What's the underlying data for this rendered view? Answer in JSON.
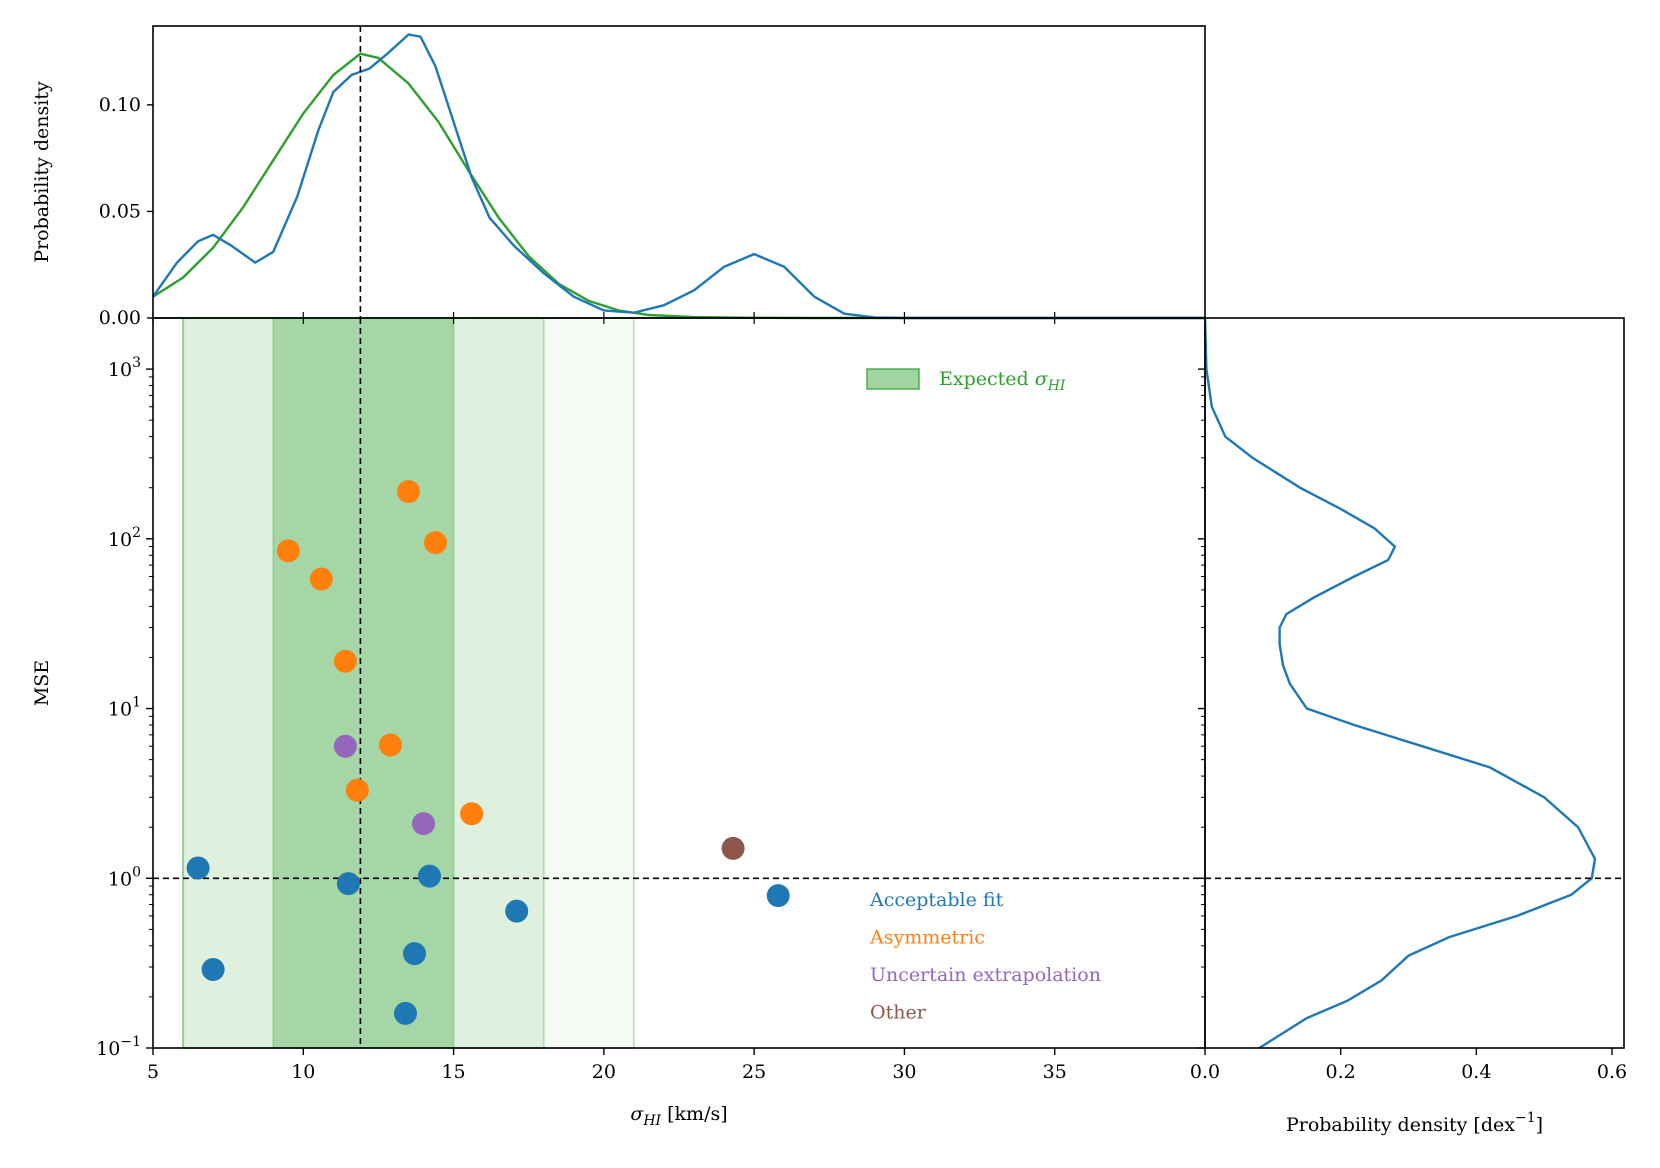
{
  "chart_data": {
    "type": "scatter",
    "top_panel": {
      "ylabel": "Probability density",
      "yticks": [
        "0.00",
        "0.05",
        "0.10"
      ],
      "ylim": [
        0,
        0.137
      ],
      "xlim": [
        5,
        40
      ],
      "vline_x": 11.9,
      "series": [
        {
          "color": "#2ca02c",
          "points": [
            [
              5,
              0.01
            ],
            [
              6,
              0.019
            ],
            [
              7,
              0.033
            ],
            [
              8,
              0.052
            ],
            [
              9,
              0.074
            ],
            [
              10,
              0.096
            ],
            [
              11,
              0.114
            ],
            [
              11.9,
              0.124
            ],
            [
              12.5,
              0.122
            ],
            [
              13.5,
              0.11
            ],
            [
              14.5,
              0.092
            ],
            [
              15.5,
              0.069
            ],
            [
              16.5,
              0.047
            ],
            [
              17.5,
              0.029
            ],
            [
              18.5,
              0.016
            ],
            [
              19.5,
              0.008
            ],
            [
              20.5,
              0.0035
            ],
            [
              21.5,
              0.0014
            ],
            [
              23,
              0.0004
            ],
            [
              25,
              0.0001
            ],
            [
              27,
              0.0
            ],
            [
              40,
              0.0
            ]
          ]
        },
        {
          "color": "#1f77b4",
          "points": [
            [
              5,
              0.01
            ],
            [
              5.8,
              0.026
            ],
            [
              6.5,
              0.036
            ],
            [
              7,
              0.039
            ],
            [
              7.6,
              0.034
            ],
            [
              8.4,
              0.026
            ],
            [
              9,
              0.031
            ],
            [
              9.8,
              0.057
            ],
            [
              10.5,
              0.088
            ],
            [
              11,
              0.106
            ],
            [
              11.6,
              0.114
            ],
            [
              12.2,
              0.117
            ],
            [
              12.8,
              0.124
            ],
            [
              13.5,
              0.133
            ],
            [
              13.9,
              0.132
            ],
            [
              14.4,
              0.118
            ],
            [
              15,
              0.092
            ],
            [
              15.6,
              0.066
            ],
            [
              16.2,
              0.047
            ],
            [
              17,
              0.034
            ],
            [
              18,
              0.021
            ],
            [
              19,
              0.01
            ],
            [
              20,
              0.0035
            ],
            [
              21,
              0.0025
            ],
            [
              22,
              0.006
            ],
            [
              23,
              0.013
            ],
            [
              24,
              0.024
            ],
            [
              25,
              0.03
            ],
            [
              26,
              0.024
            ],
            [
              27,
              0.01
            ],
            [
              28,
              0.002
            ],
            [
              29,
              0.0003
            ],
            [
              30,
              0.0
            ],
            [
              40,
              0.0
            ]
          ]
        }
      ]
    },
    "main_panel": {
      "xlabel": "σ",
      "xlabel_sub": "HI",
      "xlabel_unit": " [km/s]",
      "ylabel": "MSE",
      "xlim": [
        5,
        40
      ],
      "ylim": [
        0.1,
        2000
      ],
      "yscale": "log",
      "xticks": [
        "5",
        "10",
        "15",
        "20",
        "25",
        "30",
        "35"
      ],
      "ytick_base": "10",
      "ytick_exps": [
        "−1",
        "0",
        "1",
        "2",
        "3"
      ],
      "hline_y": 1,
      "vline_x": 11.9,
      "bands": [
        {
          "x0": 6,
          "x1": 21,
          "color": "#2ca02c",
          "opacity": 0.05
        },
        {
          "x0": 6,
          "x1": 18,
          "color": "#2ca02c",
          "opacity": 0.1
        },
        {
          "x0": 9,
          "x1": 15,
          "color": "#2ca02c",
          "opacity": 0.32
        }
      ],
      "band_legend": {
        "label": "Expected σ",
        "label_sub": "HI",
        "color": "#2ca02c"
      },
      "categories": [
        {
          "name": "Acceptable fit",
          "color": "#1f77b4"
        },
        {
          "name": "Asymmetric",
          "color": "#ff7f0e"
        },
        {
          "name": "Uncertain extrapolation",
          "color": "#9467bd"
        },
        {
          "name": "Other",
          "color": "#8c564b"
        }
      ],
      "points": [
        {
          "x": 6.5,
          "y": 1.15,
          "cat": 0
        },
        {
          "x": 7.0,
          "y": 0.29,
          "cat": 0
        },
        {
          "x": 11.5,
          "y": 0.93,
          "cat": 0
        },
        {
          "x": 13.4,
          "y": 0.16,
          "cat": 0
        },
        {
          "x": 13.7,
          "y": 0.36,
          "cat": 0
        },
        {
          "x": 14.2,
          "y": 1.03,
          "cat": 0
        },
        {
          "x": 17.1,
          "y": 0.64,
          "cat": 0
        },
        {
          "x": 25.8,
          "y": 0.79,
          "cat": 0
        },
        {
          "x": 9.5,
          "y": 85,
          "cat": 1
        },
        {
          "x": 10.6,
          "y": 58,
          "cat": 1
        },
        {
          "x": 11.4,
          "y": 19,
          "cat": 1
        },
        {
          "x": 11.8,
          "y": 3.3,
          "cat": 1
        },
        {
          "x": 12.9,
          "y": 6.1,
          "cat": 1
        },
        {
          "x": 13.5,
          "y": 190,
          "cat": 1
        },
        {
          "x": 14.4,
          "y": 95,
          "cat": 1
        },
        {
          "x": 15.6,
          "y": 2.4,
          "cat": 1
        },
        {
          "x": 11.4,
          "y": 6.0,
          "cat": 2
        },
        {
          "x": 14.0,
          "y": 2.1,
          "cat": 2
        },
        {
          "x": 24.3,
          "y": 1.5,
          "cat": 3
        }
      ]
    },
    "right_panel": {
      "xlabel": "Probability density [dex",
      "xlabel_sup": "−1",
      "xlabel_end": "]",
      "xlim": [
        0,
        0.6
      ],
      "xticks": [
        "0.0",
        "0.2",
        "0.4",
        "0.6"
      ],
      "color": "#1f77b4",
      "points": [
        [
          0.0,
          2000
        ],
        [
          0.002,
          1000
        ],
        [
          0.01,
          600
        ],
        [
          0.03,
          400
        ],
        [
          0.07,
          300
        ],
        [
          0.14,
          200
        ],
        [
          0.2,
          150
        ],
        [
          0.25,
          115
        ],
        [
          0.28,
          90
        ],
        [
          0.27,
          75
        ],
        [
          0.22,
          60
        ],
        [
          0.16,
          45
        ],
        [
          0.12,
          36
        ],
        [
          0.11,
          30
        ],
        [
          0.11,
          24
        ],
        [
          0.115,
          18
        ],
        [
          0.125,
          14
        ],
        [
          0.15,
          10
        ],
        [
          0.22,
          8
        ],
        [
          0.32,
          6
        ],
        [
          0.42,
          4.5
        ],
        [
          0.5,
          3.0
        ],
        [
          0.55,
          2.0
        ],
        [
          0.575,
          1.3
        ],
        [
          0.57,
          1.0
        ],
        [
          0.54,
          0.8
        ],
        [
          0.46,
          0.6
        ],
        [
          0.36,
          0.45
        ],
        [
          0.3,
          0.35
        ],
        [
          0.26,
          0.25
        ],
        [
          0.21,
          0.19
        ],
        [
          0.15,
          0.15
        ],
        [
          0.08,
          0.1
        ]
      ]
    }
  }
}
